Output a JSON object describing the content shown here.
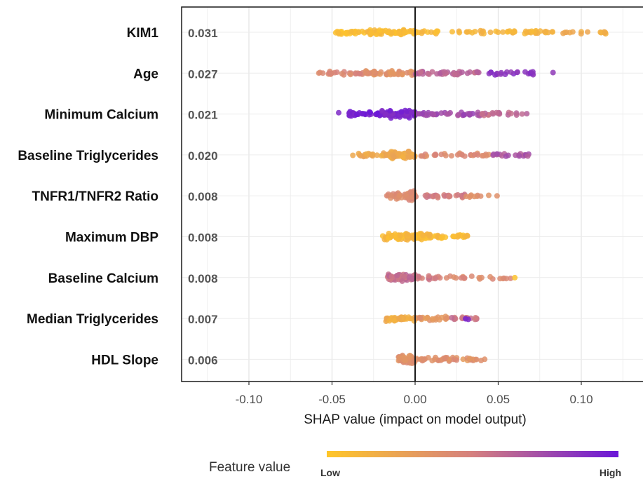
{
  "chart_data": {
    "type": "scatter",
    "subtype": "shap-beeswarm",
    "title": "",
    "xlabel": "SHAP value (impact on model output)",
    "ylabel": "",
    "xlim": [
      -0.14,
      0.14
    ],
    "xticks": [
      -0.1,
      -0.05,
      0.0,
      0.05,
      0.1
    ],
    "xtick_labels": [
      "-0.10",
      "-0.05",
      "0.00",
      "0.05",
      "0.10"
    ],
    "grid": true,
    "vertical_reference_line": 0.0,
    "colors": {
      "low": "#ffc629",
      "mid": "#d5807f",
      "high": "#6a16d8"
    },
    "legend": {
      "title": "Feature value",
      "low_label": "Low",
      "high_label": "High",
      "placement": "bottom"
    },
    "features": [
      {
        "name": "KIM1",
        "mean_abs_shap": "0.031",
        "segments": [
          {
            "range": [
              -0.05,
              -0.03
            ],
            "count": 26,
            "color_value": 0.05
          },
          {
            "range": [
              -0.03,
              0.0
            ],
            "count": 60,
            "color_value": 0.08
          },
          {
            "range": [
              0.0,
              0.02
            ],
            "count": 12,
            "color_value": 0.1
          },
          {
            "range": [
              0.022,
              0.085
            ],
            "count": 45,
            "color_value": 0.12
          },
          {
            "range": [
              0.085,
              0.115
            ],
            "count": 14,
            "color_value": 0.18
          }
        ]
      },
      {
        "name": "Age",
        "mean_abs_shap": "0.027",
        "segments": [
          {
            "range": [
              -0.058,
              -0.03
            ],
            "count": 24,
            "color_value": 0.45
          },
          {
            "range": [
              -0.03,
              0.0
            ],
            "count": 48,
            "color_value": 0.38
          },
          {
            "range": [
              0.0,
              0.04
            ],
            "count": 36,
            "color_value": 0.62
          },
          {
            "range": [
              0.04,
              0.072
            ],
            "count": 22,
            "color_value": 0.85
          },
          {
            "range": [
              0.083,
              0.083
            ],
            "count": 1,
            "color_value": 0.88
          }
        ]
      },
      {
        "name": "Minimum Calcium",
        "mean_abs_shap": "0.021",
        "segments": [
          {
            "range": [
              -0.046,
              -0.046
            ],
            "count": 1,
            "color_value": 0.95
          },
          {
            "range": [
              -0.04,
              -0.02
            ],
            "count": 34,
            "color_value": 0.95
          },
          {
            "range": [
              -0.02,
              0.0
            ],
            "count": 70,
            "color_value": 0.92
          },
          {
            "range": [
              0.0,
              0.04
            ],
            "count": 34,
            "color_value": 0.75
          },
          {
            "range": [
              0.04,
              0.069
            ],
            "count": 20,
            "color_value": 0.6
          }
        ]
      },
      {
        "name": "Baseline Triglycerides",
        "mean_abs_shap": "0.020",
        "segments": [
          {
            "range": [
              -0.038,
              -0.015
            ],
            "count": 26,
            "color_value": 0.22
          },
          {
            "range": [
              -0.015,
              0.0
            ],
            "count": 56,
            "color_value": 0.2
          },
          {
            "range": [
              0.003,
              0.045
            ],
            "count": 30,
            "color_value": 0.42
          },
          {
            "range": [
              0.045,
              0.071
            ],
            "count": 18,
            "color_value": 0.7
          }
        ]
      },
      {
        "name": "TNFR1/TNFR2 Ratio",
        "mean_abs_shap": "0.008",
        "segments": [
          {
            "range": [
              -0.018,
              -0.004
            ],
            "count": 36,
            "color_value": 0.4
          },
          {
            "range": [
              -0.004,
              0.0
            ],
            "count": 24,
            "color_value": 0.42
          },
          {
            "range": [
              0.0,
              0.03
            ],
            "count": 28,
            "color_value": 0.5
          },
          {
            "range": [
              0.03,
              0.05
            ],
            "count": 10,
            "color_value": 0.4
          }
        ]
      },
      {
        "name": "Maximum DBP",
        "mean_abs_shap": "0.008",
        "segments": [
          {
            "range": [
              -0.02,
              -0.005
            ],
            "count": 40,
            "color_value": 0.1
          },
          {
            "range": [
              -0.005,
              0.01
            ],
            "count": 50,
            "color_value": 0.1
          },
          {
            "range": [
              0.01,
              0.032
            ],
            "count": 26,
            "color_value": 0.08
          }
        ]
      },
      {
        "name": "Baseline Calcium",
        "mean_abs_shap": "0.008",
        "segments": [
          {
            "range": [
              -0.018,
              0.0
            ],
            "count": 56,
            "color_value": 0.58
          },
          {
            "range": [
              0.0,
              0.015
            ],
            "count": 14,
            "color_value": 0.52
          },
          {
            "range": [
              0.018,
              0.058
            ],
            "count": 20,
            "color_value": 0.42
          },
          {
            "range": [
              0.06,
              0.06
            ],
            "count": 1,
            "color_value": 0.05
          }
        ]
      },
      {
        "name": "Median Triglycerides",
        "mean_abs_shap": "0.007",
        "segments": [
          {
            "range": [
              -0.018,
              0.0
            ],
            "count": 40,
            "color_value": 0.18
          },
          {
            "range": [
              0.0,
              0.02
            ],
            "count": 24,
            "color_value": 0.35
          },
          {
            "range": [
              0.02,
              0.04
            ],
            "count": 16,
            "color_value": 0.55
          },
          {
            "range": [
              0.03,
              0.033
            ],
            "count": 2,
            "color_value": 0.95
          }
        ]
      },
      {
        "name": "HDL Slope",
        "mean_abs_shap": "0.006",
        "segments": [
          {
            "range": [
              -0.01,
              0.0
            ],
            "count": 44,
            "color_value": 0.38
          },
          {
            "range": [
              0.0,
              0.025
            ],
            "count": 30,
            "color_value": 0.4
          },
          {
            "range": [
              0.025,
              0.043
            ],
            "count": 12,
            "color_value": 0.36
          }
        ]
      }
    ]
  }
}
